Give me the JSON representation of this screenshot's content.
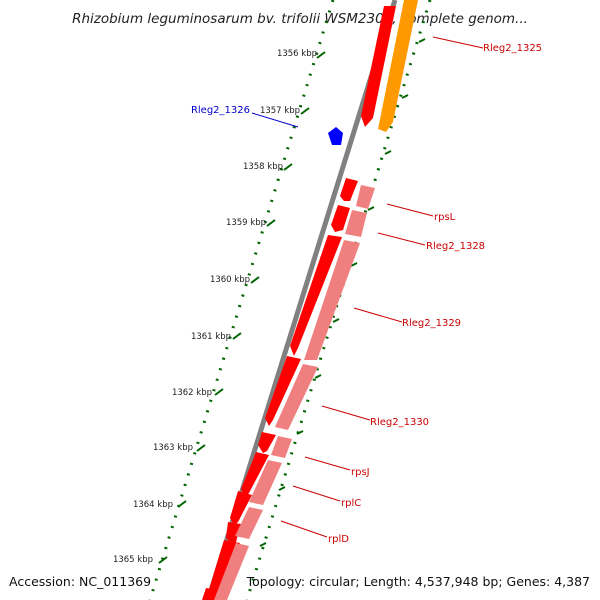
{
  "title": "Rhizobium leguminosarum bv. trifolii WSM2304, complete genom...",
  "footer": {
    "accession": "Accession: NC_011369",
    "summary": "Topology: circular; Length: 4,537,948 bp; Genes: 4,387"
  },
  "colors": {
    "backbone": "#808080",
    "cds_forward": "#ff0000",
    "cds_reverse": "#f08080",
    "feature_orange": "#ff9900",
    "feature_blue": "#0000ff",
    "tick": "#006400",
    "label_red": "#cc0000",
    "label_blue": "#0000cc"
  },
  "ticks": [
    {
      "label": "1356 kbp"
    },
    {
      "label": "1357 kbp"
    },
    {
      "label": "1358 kbp"
    },
    {
      "label": "1359 kbp"
    },
    {
      "label": "1360 kbp"
    },
    {
      "label": "1361 kbp"
    },
    {
      "label": "1362 kbp"
    },
    {
      "label": "1363 kbp"
    },
    {
      "label": "1364 kbp"
    },
    {
      "label": "1365 kbp"
    }
  ],
  "genes": [
    {
      "name": "Rleg2_1325",
      "color": "red"
    },
    {
      "name": "Rleg2_1326",
      "color": "blue"
    },
    {
      "name": "rpsL",
      "color": "red"
    },
    {
      "name": "Rleg2_1328",
      "color": "red"
    },
    {
      "name": "Rleg2_1329",
      "color": "red"
    },
    {
      "name": "Rleg2_1330",
      "color": "red"
    },
    {
      "name": "rpsJ",
      "color": "red"
    },
    {
      "name": "rplC",
      "color": "red"
    },
    {
      "name": "rplD",
      "color": "red"
    }
  ]
}
